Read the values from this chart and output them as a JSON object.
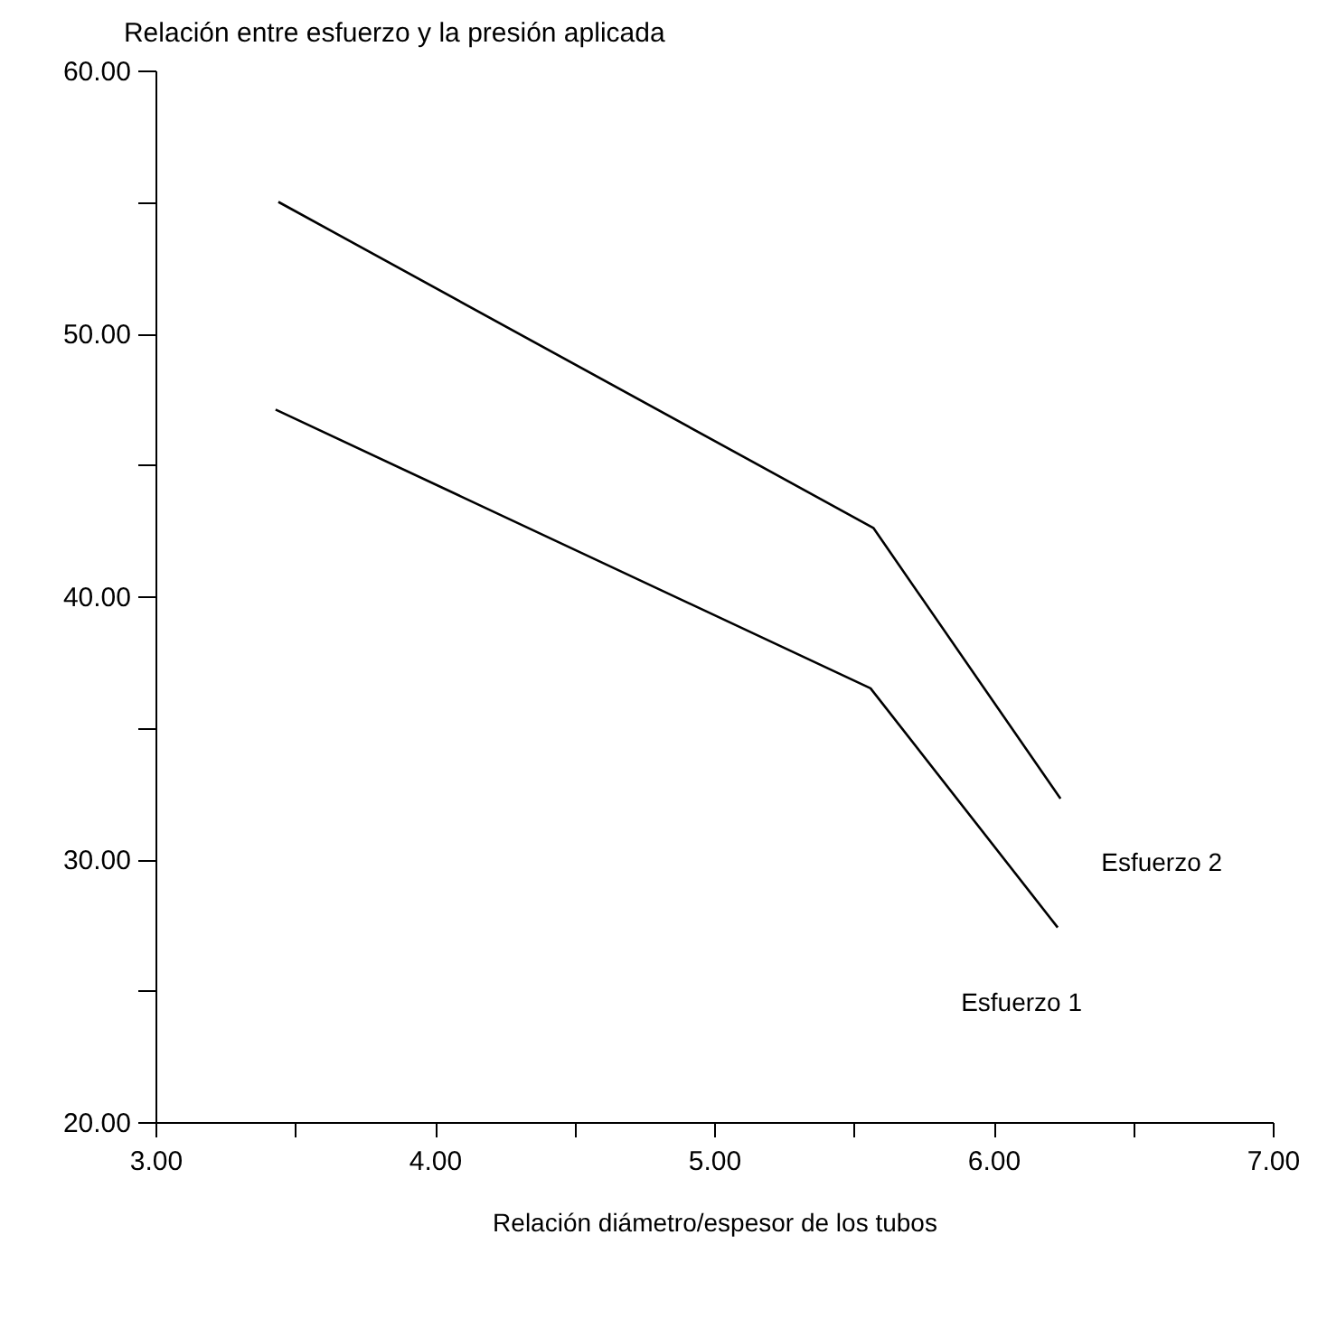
{
  "chart_data": {
    "type": "line",
    "title": "Relación entre esfuerzo y la presión aplicada",
    "xlabel": "Relación  diámetro/espesor de los tubos",
    "xlim": [
      3,
      7
    ],
    "ylim": [
      20,
      60
    ],
    "xticks": [
      {
        "value": 3,
        "label": "3.00"
      },
      {
        "value": 3.5,
        "label": null
      },
      {
        "value": 4,
        "label": "4.00"
      },
      {
        "value": 4.5,
        "label": null
      },
      {
        "value": 5,
        "label": "5.00"
      },
      {
        "value": 5.5,
        "label": null
      },
      {
        "value": 6,
        "label": "6.00"
      },
      {
        "value": 6.5,
        "label": null
      },
      {
        "value": 7,
        "label": "7.00"
      }
    ],
    "yticks": [
      {
        "value": 20,
        "label": "20.00"
      },
      {
        "value": 25,
        "label": null
      },
      {
        "value": 30,
        "label": "30.00"
      },
      {
        "value": 35,
        "label": null
      },
      {
        "value": 40,
        "label": "40.00"
      },
      {
        "value": 45,
        "label": null
      },
      {
        "value": 50,
        "label": "50.00"
      },
      {
        "value": 55,
        "label": null
      },
      {
        "value": 60,
        "label": "60.00"
      }
    ],
    "grid": false,
    "legend": false,
    "series": [
      {
        "name": "Esfuerzo 1",
        "color": "#000000",
        "x": [
          3.43,
          5.56,
          6.23
        ],
        "values": [
          47.1,
          36.5,
          27.4
        ]
      },
      {
        "name": "Esfuerzo 2",
        "color": "#000000",
        "x": [
          3.44,
          5.57,
          6.24
        ],
        "values": [
          55.0,
          42.6,
          32.3
        ]
      }
    ]
  }
}
